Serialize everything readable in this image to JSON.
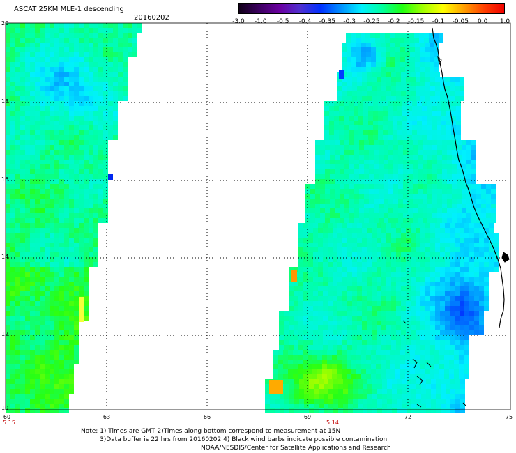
{
  "header": {
    "title": "ASCAT 25KM MLE-1 descending",
    "date": "20160202"
  },
  "colorbar": {
    "labels": [
      "-3.0",
      "-1.0",
      "-0.5",
      "-0.4",
      "-0.35",
      "-0.3",
      "-0.25",
      "-0.2",
      "-0.15",
      "-0.1",
      "-0.05",
      "0.0",
      "1.0"
    ],
    "colors": [
      "#100018",
      "#3c0060",
      "#6a00a0",
      "#5030d0",
      "#0030ff",
      "#0090ff",
      "#00f0ff",
      "#00ffa0",
      "#20ff10",
      "#a0ff00",
      "#ffff00",
      "#ffa000",
      "#ff4000",
      "#f00000"
    ]
  },
  "axes": {
    "lat_labels": [
      "20",
      "18",
      "16",
      "14",
      "12",
      "10"
    ],
    "lon_labels": [
      "60",
      "63",
      "66",
      "69",
      "72",
      "75"
    ],
    "time_labels": [
      "5:15",
      "5:14"
    ]
  },
  "notes": {
    "line1": "Note: 1) Times are GMT 2)Times along bottom correspond to measurement at 15N",
    "line2": "3)Data buffer is 22 hrs from 20160202 4) Black wind barbs indicate possible contamination",
    "line3": "NOAA/NESDIS/Center for Satellite Applications and Research"
  }
}
